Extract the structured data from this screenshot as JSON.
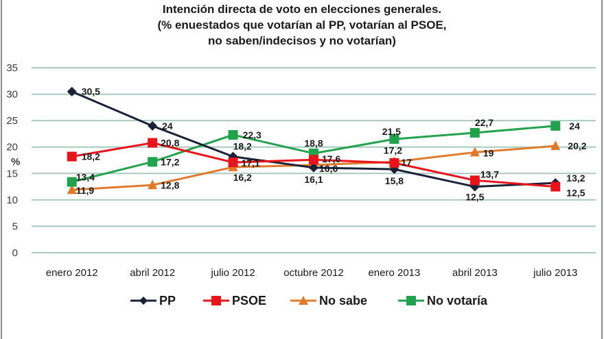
{
  "chart_data": {
    "type": "line",
    "title": [
      "Intención directa de voto en elecciones generales.",
      "(% enuestados que votarían al PP,  votarían al PSOE,",
      "no saben/indecisos y no votarían)"
    ],
    "xlabel": "",
    "ylabel": "%",
    "ylim": [
      0,
      35
    ],
    "yticks": [
      "0",
      "5",
      "10",
      "15",
      "20",
      "25",
      "30",
      "35"
    ],
    "grid": true,
    "legend_position": "bottom",
    "categories": [
      "enero  2012",
      "abril 2012",
      "julio 2012",
      "octubre 2012",
      "enero 2013",
      "abril 2013",
      "julio 2013"
    ],
    "series": [
      {
        "name": "PP",
        "color": "#1b2238",
        "marker": "diamond",
        "values": [
          30.5,
          24,
          18.2,
          16.1,
          15.8,
          12.5,
          13.2
        ],
        "labels": [
          "30,5",
          "24",
          "18,2",
          "16,1",
          "15,8",
          "12,5",
          "13,2"
        ]
      },
      {
        "name": "PSOE",
        "color": "#e8141c",
        "marker": "square",
        "values": [
          18.2,
          20.8,
          17.1,
          17.6,
          17,
          13.7,
          12.5
        ],
        "labels": [
          "18,2",
          "20,8",
          "17,1",
          "17,6",
          "17",
          "13,7",
          "12,5"
        ]
      },
      {
        "name": "No sabe",
        "color": "#e07a2a",
        "marker": "triangle",
        "values": [
          11.9,
          12.8,
          16.2,
          16.6,
          17.2,
          19,
          20.2
        ],
        "labels": [
          "11,9",
          "12,8",
          "16,2",
          "16,6",
          "17,2",
          "19",
          "20,2"
        ]
      },
      {
        "name": "No votaría",
        "color": "#22a24c",
        "marker": "square",
        "values": [
          13.4,
          17.2,
          22.3,
          18.8,
          21.5,
          22.7,
          24
        ],
        "labels": [
          "13,4",
          "17,2",
          "22,3",
          "18,8",
          "21,5",
          "22,7",
          "24"
        ]
      }
    ]
  },
  "style": {
    "grid_color": "#a9c9bf",
    "frame_color": "#8a8a8a"
  }
}
